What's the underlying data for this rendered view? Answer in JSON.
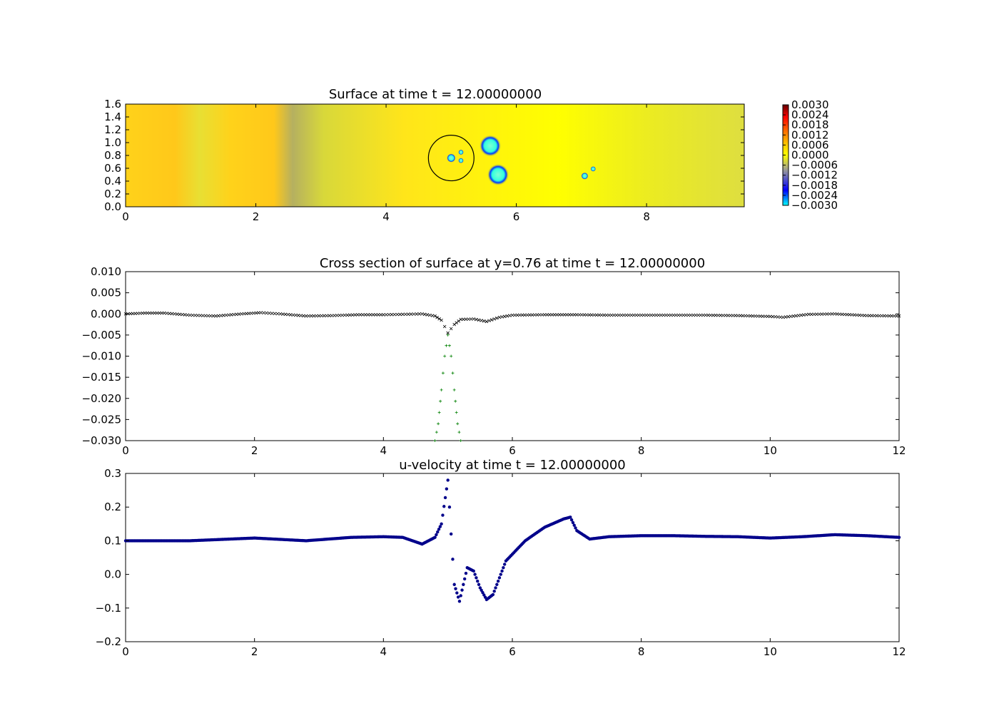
{
  "chart_data": [
    {
      "type": "heatmap",
      "title": "Surface at time t =    12.00000000",
      "xlim": [
        0,
        9.5
      ],
      "ylim": [
        0,
        1.6
      ],
      "x_ticks": [
        "0",
        "2",
        "4",
        "6",
        "8"
      ],
      "x_tick_values": [
        0,
        2,
        4,
        6,
        8
      ],
      "y_ticks": [
        "0.0",
        "0.2",
        "0.4",
        "0.6",
        "0.8",
        "1.0",
        "1.2",
        "1.4",
        "1.6"
      ],
      "y_tick_values": [
        0,
        0.2,
        0.4,
        0.6,
        0.8,
        1.0,
        1.2,
        1.4,
        1.6
      ],
      "colorbar": {
        "labels": [
          "0.0030",
          "0.0024",
          "0.0018",
          "0.0012",
          "0.0006",
          "0.0000",
          "−0.0006",
          "−0.0012",
          "−0.0018",
          "−0.0024",
          "−0.0030"
        ],
        "values": [
          0.003,
          0.0024,
          0.0018,
          0.0012,
          0.0006,
          0.0,
          -0.0006,
          -0.0012,
          -0.0018,
          -0.0024,
          -0.003
        ],
        "range": [
          -0.003,
          0.003
        ],
        "colors": [
          "#00ffff",
          "#0000ff",
          "#888888",
          "#ffff00",
          "#ff0000",
          "#660000"
        ]
      },
      "features": [
        {
          "kind": "circle-outline",
          "x": 5.0,
          "y": 0.76,
          "r": 0.35
        },
        {
          "kind": "depression",
          "x": 5.6,
          "y": 0.95,
          "r": 0.12
        },
        {
          "kind": "depression",
          "x": 5.72,
          "y": 0.5,
          "r": 0.12
        },
        {
          "kind": "depression",
          "x": 5.0,
          "y": 0.76,
          "r": 0.05
        },
        {
          "kind": "depression",
          "x": 5.15,
          "y": 0.85,
          "r": 0.03
        },
        {
          "kind": "depression",
          "x": 5.15,
          "y": 0.72,
          "r": 0.03
        },
        {
          "kind": "depression",
          "x": 7.05,
          "y": 0.48,
          "r": 0.04
        },
        {
          "kind": "depression",
          "x": 7.18,
          "y": 0.59,
          "r": 0.03
        }
      ]
    },
    {
      "type": "scatter",
      "title": "Cross section of surface at y=0.76 at time t =    12.00000000",
      "xlim": [
        0,
        12
      ],
      "ylim": [
        -0.03,
        0.01
      ],
      "x_ticks": [
        "0",
        "2",
        "4",
        "6",
        "8",
        "10",
        "12"
      ],
      "x_tick_values": [
        0,
        2,
        4,
        6,
        8,
        10,
        12
      ],
      "y_ticks": [
        "0.010",
        "0.005",
        "0.000",
        "−0.005",
        "−0.010",
        "−0.015",
        "−0.020",
        "−0.025",
        "−0.030"
      ],
      "y_tick_values": [
        0.01,
        0.005,
        0.0,
        -0.005,
        -0.01,
        -0.015,
        -0.02,
        -0.025,
        -0.03
      ],
      "series": [
        {
          "marker": "x",
          "color": "#000000",
          "points": [
            [
              0,
              0.0
            ],
            [
              0.3,
              0.0002
            ],
            [
              0.6,
              0.0002
            ],
            [
              1.0,
              -0.0003
            ],
            [
              1.4,
              -0.0005
            ],
            [
              1.8,
              0.0
            ],
            [
              2.1,
              0.0003
            ],
            [
              2.4,
              0.0
            ],
            [
              2.8,
              -0.0005
            ],
            [
              3.2,
              -0.0004
            ],
            [
              3.6,
              -0.0002
            ],
            [
              4.0,
              -0.0002
            ],
            [
              4.3,
              -0.0001
            ],
            [
              4.6,
              0.0
            ],
            [
              4.8,
              -0.0005
            ],
            [
              4.9,
              -0.0015
            ],
            [
              5.0,
              -0.0045
            ],
            [
              5.1,
              -0.0025
            ],
            [
              5.2,
              -0.0013
            ],
            [
              5.4,
              -0.0012
            ],
            [
              5.6,
              -0.0018
            ],
            [
              5.8,
              -0.0008
            ],
            [
              6.0,
              -0.0003
            ],
            [
              6.5,
              -0.0002
            ],
            [
              7.0,
              -0.0002
            ],
            [
              7.5,
              -0.0003
            ],
            [
              8.0,
              -0.0003
            ],
            [
              8.5,
              -0.0003
            ],
            [
              9.0,
              -0.0003
            ],
            [
              9.5,
              -0.0004
            ],
            [
              10.0,
              -0.0006
            ],
            [
              10.2,
              -0.0008
            ],
            [
              10.6,
              -0.0001
            ],
            [
              11.0,
              0.0
            ],
            [
              11.5,
              -0.0004
            ],
            [
              12.0,
              -0.0005
            ]
          ]
        },
        {
          "marker": "+",
          "color": "#008000",
          "points": [
            [
              4.8,
              -0.03
            ],
            [
              4.85,
              -0.026
            ],
            [
              4.9,
              -0.018
            ],
            [
              4.95,
              -0.01
            ],
            [
              5.0,
              -0.005
            ],
            [
              5.05,
              -0.01
            ],
            [
              5.1,
              -0.018
            ],
            [
              5.15,
              -0.026
            ],
            [
              5.2,
              -0.03
            ]
          ]
        }
      ]
    },
    {
      "type": "scatter",
      "title": "u-velocity at time t =    12.00000000",
      "xlim": [
        0,
        12
      ],
      "ylim": [
        -0.2,
        0.3
      ],
      "x_ticks": [
        "0",
        "2",
        "4",
        "6",
        "8",
        "10",
        "12"
      ],
      "x_tick_values": [
        0,
        2,
        4,
        6,
        8,
        10,
        12
      ],
      "y_ticks": [
        "0.3",
        "0.2",
        "0.1",
        "0.0",
        "−0.1",
        "−0.2"
      ],
      "y_tick_values": [
        0.3,
        0.2,
        0.1,
        0.0,
        -0.1,
        -0.2
      ],
      "series": [
        {
          "marker": "o",
          "color": "#00008b",
          "points": [
            [
              0,
              0.1
            ],
            [
              1.0,
              0.1
            ],
            [
              2.0,
              0.108
            ],
            [
              2.8,
              0.1
            ],
            [
              3.5,
              0.11
            ],
            [
              4.0,
              0.112
            ],
            [
              4.3,
              0.11
            ],
            [
              4.6,
              0.09
            ],
            [
              4.8,
              0.11
            ],
            [
              4.9,
              0.15
            ],
            [
              5.0,
              0.28
            ],
            [
              5.05,
              0.12
            ],
            [
              5.1,
              -0.03
            ],
            [
              5.18,
              -0.08
            ],
            [
              5.3,
              0.02
            ],
            [
              5.4,
              0.01
            ],
            [
              5.5,
              -0.04
            ],
            [
              5.6,
              -0.075
            ],
            [
              5.7,
              -0.06
            ],
            [
              5.9,
              0.04
            ],
            [
              6.2,
              0.1
            ],
            [
              6.5,
              0.14
            ],
            [
              6.8,
              0.165
            ],
            [
              6.9,
              0.17
            ],
            [
              7.0,
              0.13
            ],
            [
              7.2,
              0.105
            ],
            [
              7.5,
              0.112
            ],
            [
              8.0,
              0.115
            ],
            [
              8.5,
              0.115
            ],
            [
              9.0,
              0.113
            ],
            [
              9.5,
              0.112
            ],
            [
              10.0,
              0.108
            ],
            [
              10.5,
              0.112
            ],
            [
              11.0,
              0.118
            ],
            [
              11.5,
              0.115
            ],
            [
              12.0,
              0.11
            ]
          ]
        }
      ]
    }
  ]
}
